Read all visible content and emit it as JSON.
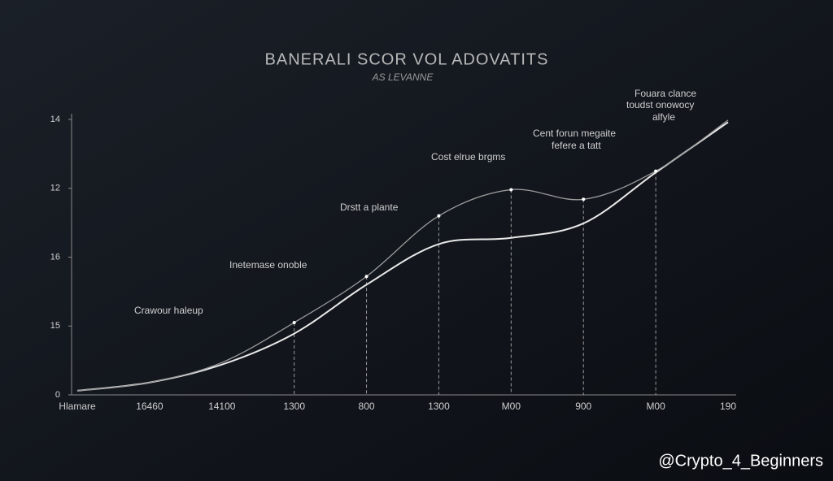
{
  "chart_data": {
    "type": "line",
    "title": "BANERALI SCOR VOL ADOVATITS",
    "subtitle": "AS LEVANNE",
    "categories": [
      "Hlamare",
      "16460",
      "14100",
      "1300",
      "800",
      "1300",
      "M00",
      "900",
      "M00",
      "190"
    ],
    "series": [
      {
        "name": "",
        "color": "#e8e8e8",
        "values": [
          0.06,
          0.18,
          0.44,
          0.89,
          1.6,
          2.19,
          2.28,
          2.49,
          3.23,
          3.96
        ]
      },
      {
        "name": "",
        "color": "#9a9a9a",
        "values": [
          0.06,
          0.18,
          0.47,
          1.05,
          1.72,
          2.6,
          2.98,
          2.84,
          3.25,
          3.99
        ]
      }
    ],
    "ylim": [
      0,
      4
    ],
    "yticks": [
      0,
      {
        "value": 1,
        "label": "15"
      },
      {
        "value": 2,
        "label": "16"
      },
      {
        "value": 3,
        "label": "12"
      },
      {
        "value": 4,
        "label": "14"
      }
    ],
    "annotations": [
      "Crawour haleup",
      "Inetemase onoble",
      "Drstt a plante",
      "Cost elrue brgms",
      "Cent forun megaite",
      "fefere a tatt",
      "Fouara clance",
      "toudst onowocy",
      "alfyle"
    ],
    "watermark": "@Crypto_4_Beginners"
  }
}
